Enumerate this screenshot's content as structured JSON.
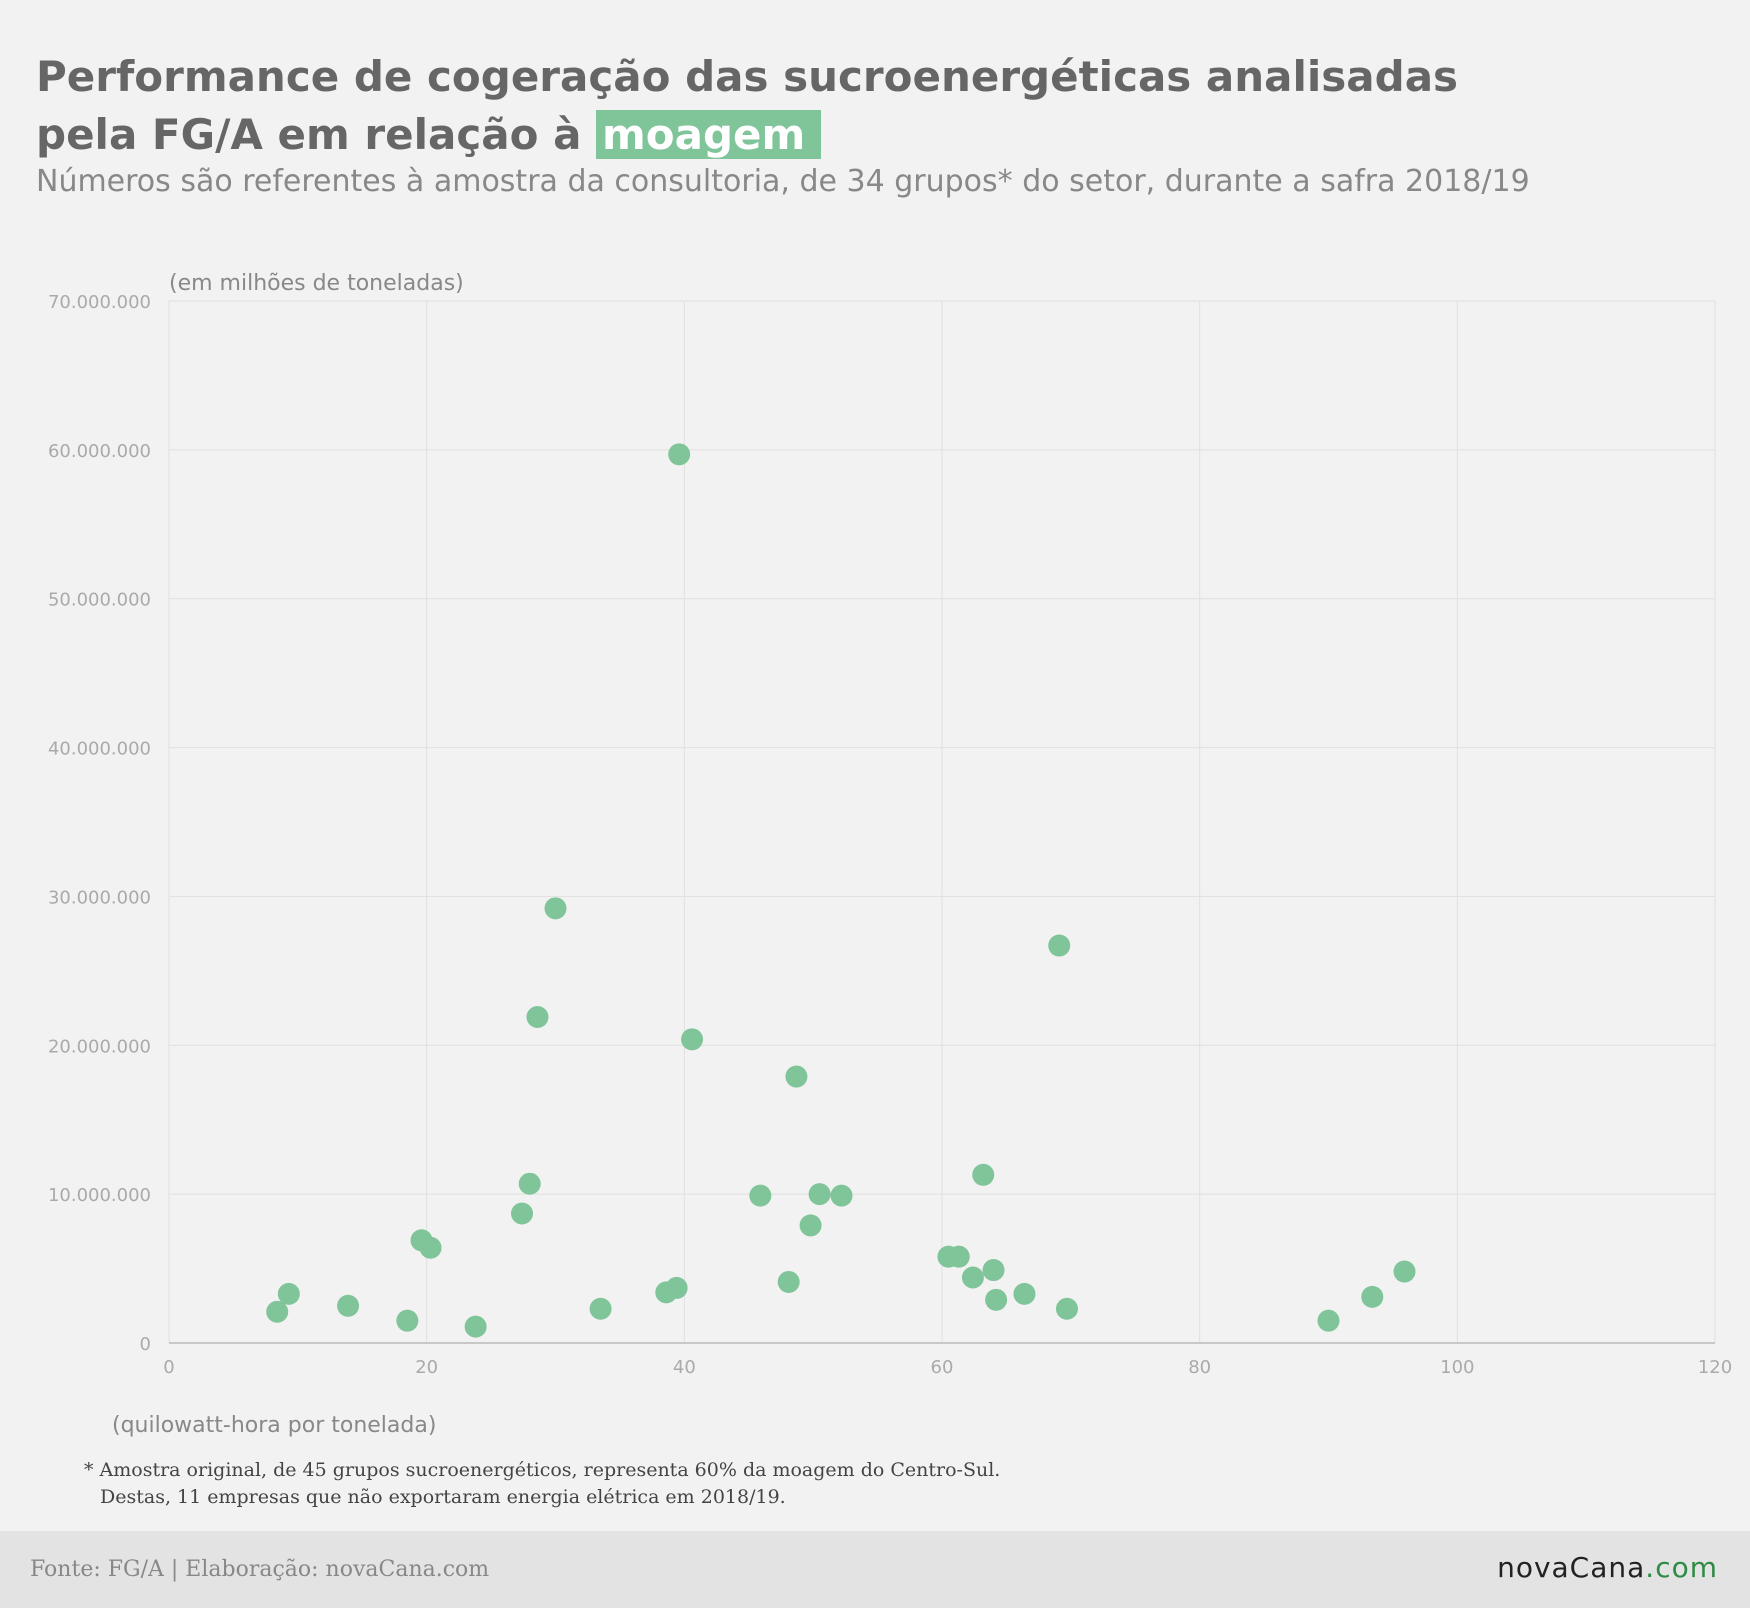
{
  "header": {
    "title_line1": "Performance de cogeração das sucroenergéticas analisadas",
    "title_line2_prefix": "pela FG/A em relação à",
    "title_highlight": "moagem",
    "subtitle": "Números são referentes à amostra da consultoria, de 34 grupos* do setor, durante a safra 2018/19"
  },
  "chart_data": {
    "type": "scatter",
    "ylabel": "(em milhões de toneladas)",
    "xlabel": "(quilowatt-hora por tonelada)",
    "xlim": [
      0,
      120
    ],
    "ylim": [
      0,
      70000000
    ],
    "xticks": [
      "0",
      "20",
      "40",
      "60",
      "80",
      "100",
      "120"
    ],
    "yticks": [
      "0",
      "10.000.000",
      "20.000.000",
      "30.000.000",
      "40.000.000",
      "50.000.000",
      "60.000.000",
      "70.000.000"
    ],
    "grid": true,
    "point_color": "#80c49a",
    "points": [
      {
        "x": 8.4,
        "y": 2100000
      },
      {
        "x": 9.3,
        "y": 3300000
      },
      {
        "x": 13.9,
        "y": 2500000
      },
      {
        "x": 18.5,
        "y": 1500000
      },
      {
        "x": 19.6,
        "y": 6900000
      },
      {
        "x": 20.3,
        "y": 6400000
      },
      {
        "x": 23.8,
        "y": 1100000
      },
      {
        "x": 27.4,
        "y": 8700000
      },
      {
        "x": 28.0,
        "y": 10700000
      },
      {
        "x": 28.6,
        "y": 21900000
      },
      {
        "x": 30.0,
        "y": 29200000
      },
      {
        "x": 33.5,
        "y": 2300000
      },
      {
        "x": 38.6,
        "y": 3400000
      },
      {
        "x": 39.4,
        "y": 3700000
      },
      {
        "x": 39.6,
        "y": 59700000
      },
      {
        "x": 40.6,
        "y": 20400000
      },
      {
        "x": 45.9,
        "y": 9900000
      },
      {
        "x": 48.1,
        "y": 4100000
      },
      {
        "x": 48.7,
        "y": 17900000
      },
      {
        "x": 49.8,
        "y": 7900000
      },
      {
        "x": 50.5,
        "y": 10000000
      },
      {
        "x": 52.2,
        "y": 9900000
      },
      {
        "x": 60.5,
        "y": 5800000
      },
      {
        "x": 61.3,
        "y": 5800000
      },
      {
        "x": 62.4,
        "y": 4400000
      },
      {
        "x": 63.2,
        "y": 11300000
      },
      {
        "x": 64.0,
        "y": 4900000
      },
      {
        "x": 64.2,
        "y": 2900000
      },
      {
        "x": 66.4,
        "y": 3300000
      },
      {
        "x": 69.1,
        "y": 26700000
      },
      {
        "x": 69.7,
        "y": 2300000
      },
      {
        "x": 90.0,
        "y": 1500000
      },
      {
        "x": 93.4,
        "y": 3100000
      },
      {
        "x": 95.9,
        "y": 4800000
      }
    ]
  },
  "footnote": {
    "line1": "* Amostra original, de 45 grupos sucroenergéticos, representa 60% da moagem do Centro-Sul.",
    "line2": "Destas, 11 empresas que não exportaram energia elétrica em 2018/19."
  },
  "footer": {
    "source": "Fonte: FG/A | Elaboração: novaCana.com",
    "logo_main": "novaCana",
    "logo_domain": ".com"
  }
}
